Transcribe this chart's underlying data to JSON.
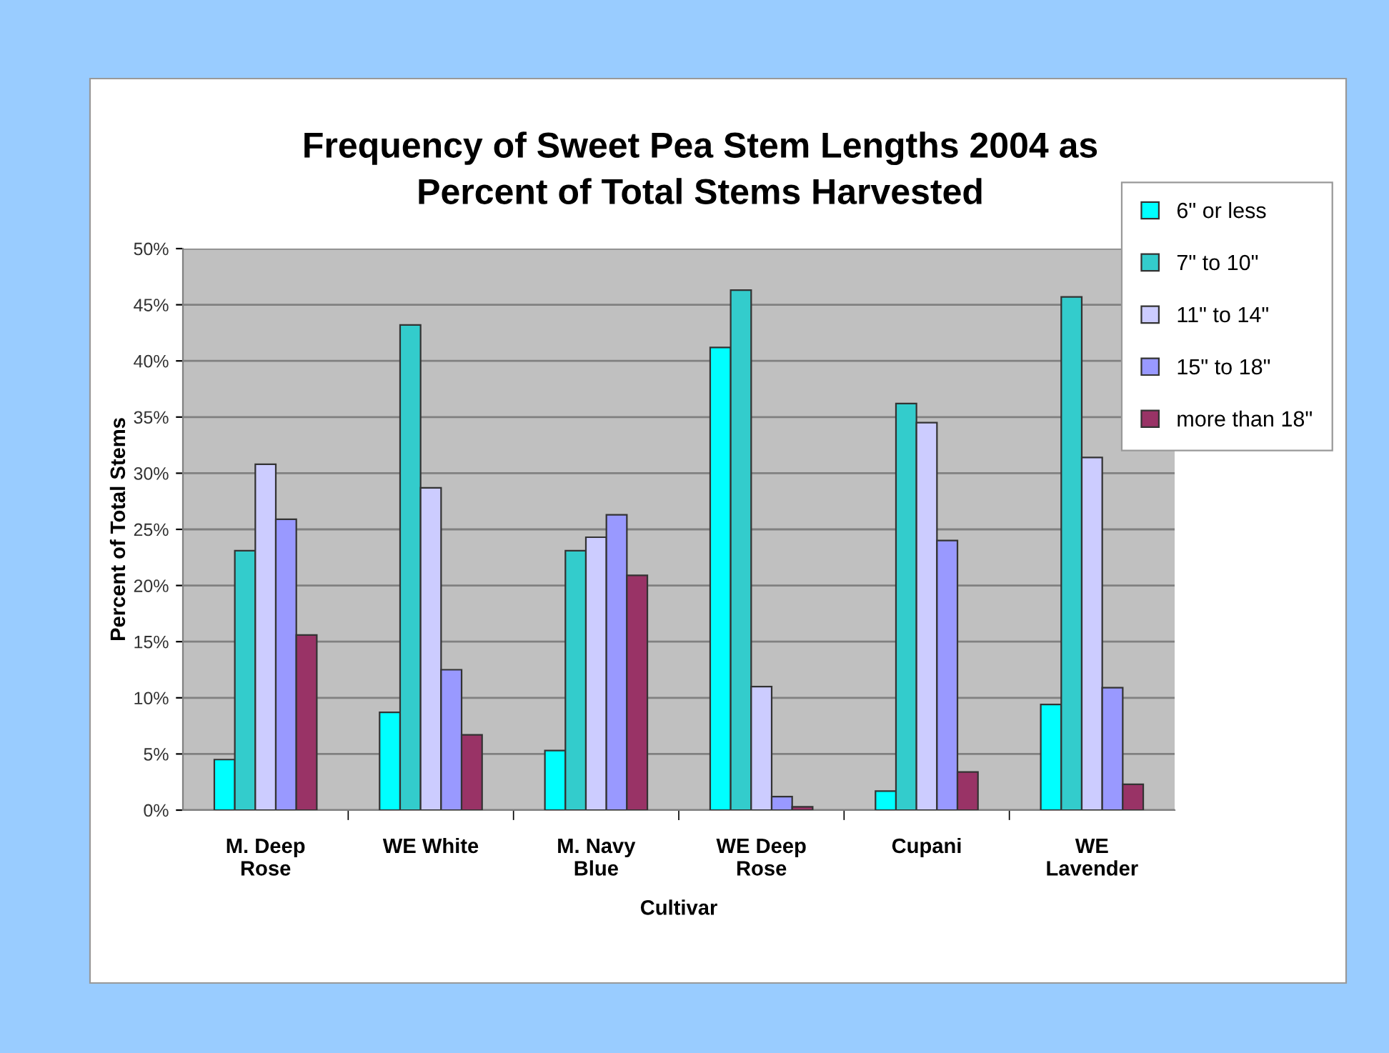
{
  "chart_data": {
    "type": "bar",
    "title": "Frequency of Sweet Pea Stem Lengths 2004 as\nPercent of Total Stems Harvested",
    "xlabel": "Cultivar",
    "ylabel": "Percent of Total Stems",
    "categories": [
      "M. Deep\nRose",
      "WE White",
      "M. Navy\nBlue",
      "WE Deep\nRose",
      "Cupani",
      "WE\nLavender"
    ],
    "series": [
      {
        "name": "6\" or less",
        "color": "#00ffff",
        "values": [
          4.5,
          8.7,
          5.3,
          41.2,
          1.7,
          9.4
        ]
      },
      {
        "name": "7\" to 10\"",
        "color": "#33cccc",
        "values": [
          23.1,
          43.2,
          23.1,
          46.3,
          36.2,
          45.7
        ]
      },
      {
        "name": "11\" to 14\"",
        "color": "#ccccff",
        "values": [
          30.8,
          28.7,
          24.3,
          11.0,
          34.5,
          31.4
        ]
      },
      {
        "name": "15\" to 18\"",
        "color": "#9999ff",
        "values": [
          25.9,
          12.5,
          26.3,
          1.2,
          24.0,
          10.9
        ]
      },
      {
        "name": "more than 18\"",
        "color": "#993366",
        "values": [
          15.6,
          6.7,
          20.9,
          0.3,
          3.4,
          2.3
        ]
      }
    ],
    "ylim": [
      0,
      50
    ],
    "yticks": [
      {
        "value": 0,
        "label": "0%"
      },
      {
        "value": 5,
        "label": "5%"
      },
      {
        "value": 10,
        "label": "10%"
      },
      {
        "value": 15,
        "label": "15%"
      },
      {
        "value": 20,
        "label": "20%"
      },
      {
        "value": 25,
        "label": "25%"
      },
      {
        "value": 30,
        "label": "30%"
      },
      {
        "value": 35,
        "label": "35%"
      },
      {
        "value": 40,
        "label": "40%"
      },
      {
        "value": 45,
        "label": "45%"
      },
      {
        "value": 50,
        "label": "50%"
      }
    ],
    "grid": "y",
    "legend": "top right"
  }
}
